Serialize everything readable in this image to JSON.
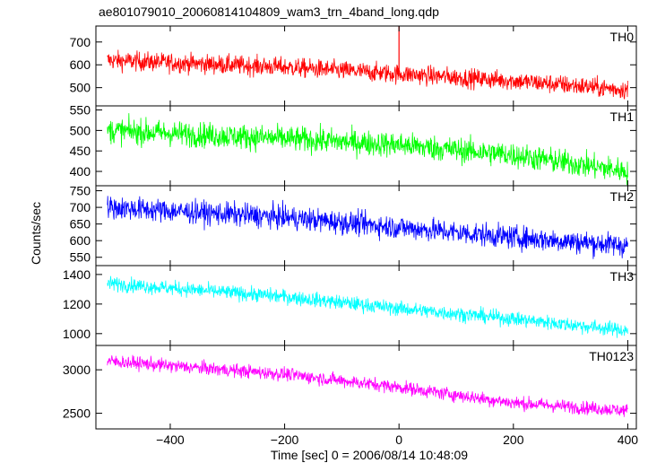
{
  "chart_data": {
    "type": "line",
    "title": "ae801079010_20060814104809_wam3_trn_4band_long.qdp",
    "xlabel": "Time [sec] 0 = 2006/08/14 10:48:09",
    "ylabel": "Counts/sec",
    "xlim": [
      -530,
      415
    ],
    "x_ticks": [
      -400,
      -200,
      0,
      200,
      400
    ],
    "x_tick_labels": [
      "−400",
      "−200",
      "0",
      "200",
      "400"
    ],
    "x_range": [
      -510,
      400
    ],
    "panels": [
      {
        "label": "TH0",
        "color": "#ff0000",
        "ylim": [
          420,
          770
        ],
        "y_ticks": [
          500,
          600,
          700
        ],
        "trend": [
          [
            -510,
            620
          ],
          [
            -200,
            590
          ],
          [
            0,
            560
          ],
          [
            200,
            530
          ],
          [
            400,
            490
          ]
        ],
        "noise": 30,
        "spike": {
          "x": 0,
          "y": 770
        }
      },
      {
        "label": "TH1",
        "color": "#00ff00",
        "ylim": [
          365,
          560
        ],
        "y_ticks": [
          400,
          450,
          500,
          550
        ],
        "trend": [
          [
            -510,
            500
          ],
          [
            -200,
            480
          ],
          [
            0,
            465
          ],
          [
            200,
            440
          ],
          [
            400,
            400
          ]
        ],
        "noise": 22
      },
      {
        "label": "TH2",
        "color": "#0000ff",
        "ylim": [
          525,
          765
        ],
        "y_ticks": [
          550,
          600,
          650,
          700,
          750
        ],
        "trend": [
          [
            -510,
            700
          ],
          [
            -200,
            670
          ],
          [
            0,
            640
          ],
          [
            200,
            610
          ],
          [
            400,
            585
          ]
        ],
        "noise": 25
      },
      {
        "label": "TH3",
        "color": "#00ffff",
        "ylim": [
          920,
          1460
        ],
        "y_ticks": [
          1000,
          1200,
          1400
        ],
        "trend": [
          [
            -510,
            1340
          ],
          [
            -200,
            1250
          ],
          [
            0,
            1170
          ],
          [
            200,
            1100
          ],
          [
            400,
            1020
          ]
        ],
        "noise": 35
      },
      {
        "label": "TH0123",
        "color": "#ff00ff",
        "ylim": [
          2320,
          3280
        ],
        "y_ticks": [
          2500,
          3000
        ],
        "trend": [
          [
            -510,
            3100
          ],
          [
            -200,
            2950
          ],
          [
            0,
            2800
          ],
          [
            200,
            2620
          ],
          [
            400,
            2530
          ]
        ],
        "noise": 55
      }
    ]
  }
}
